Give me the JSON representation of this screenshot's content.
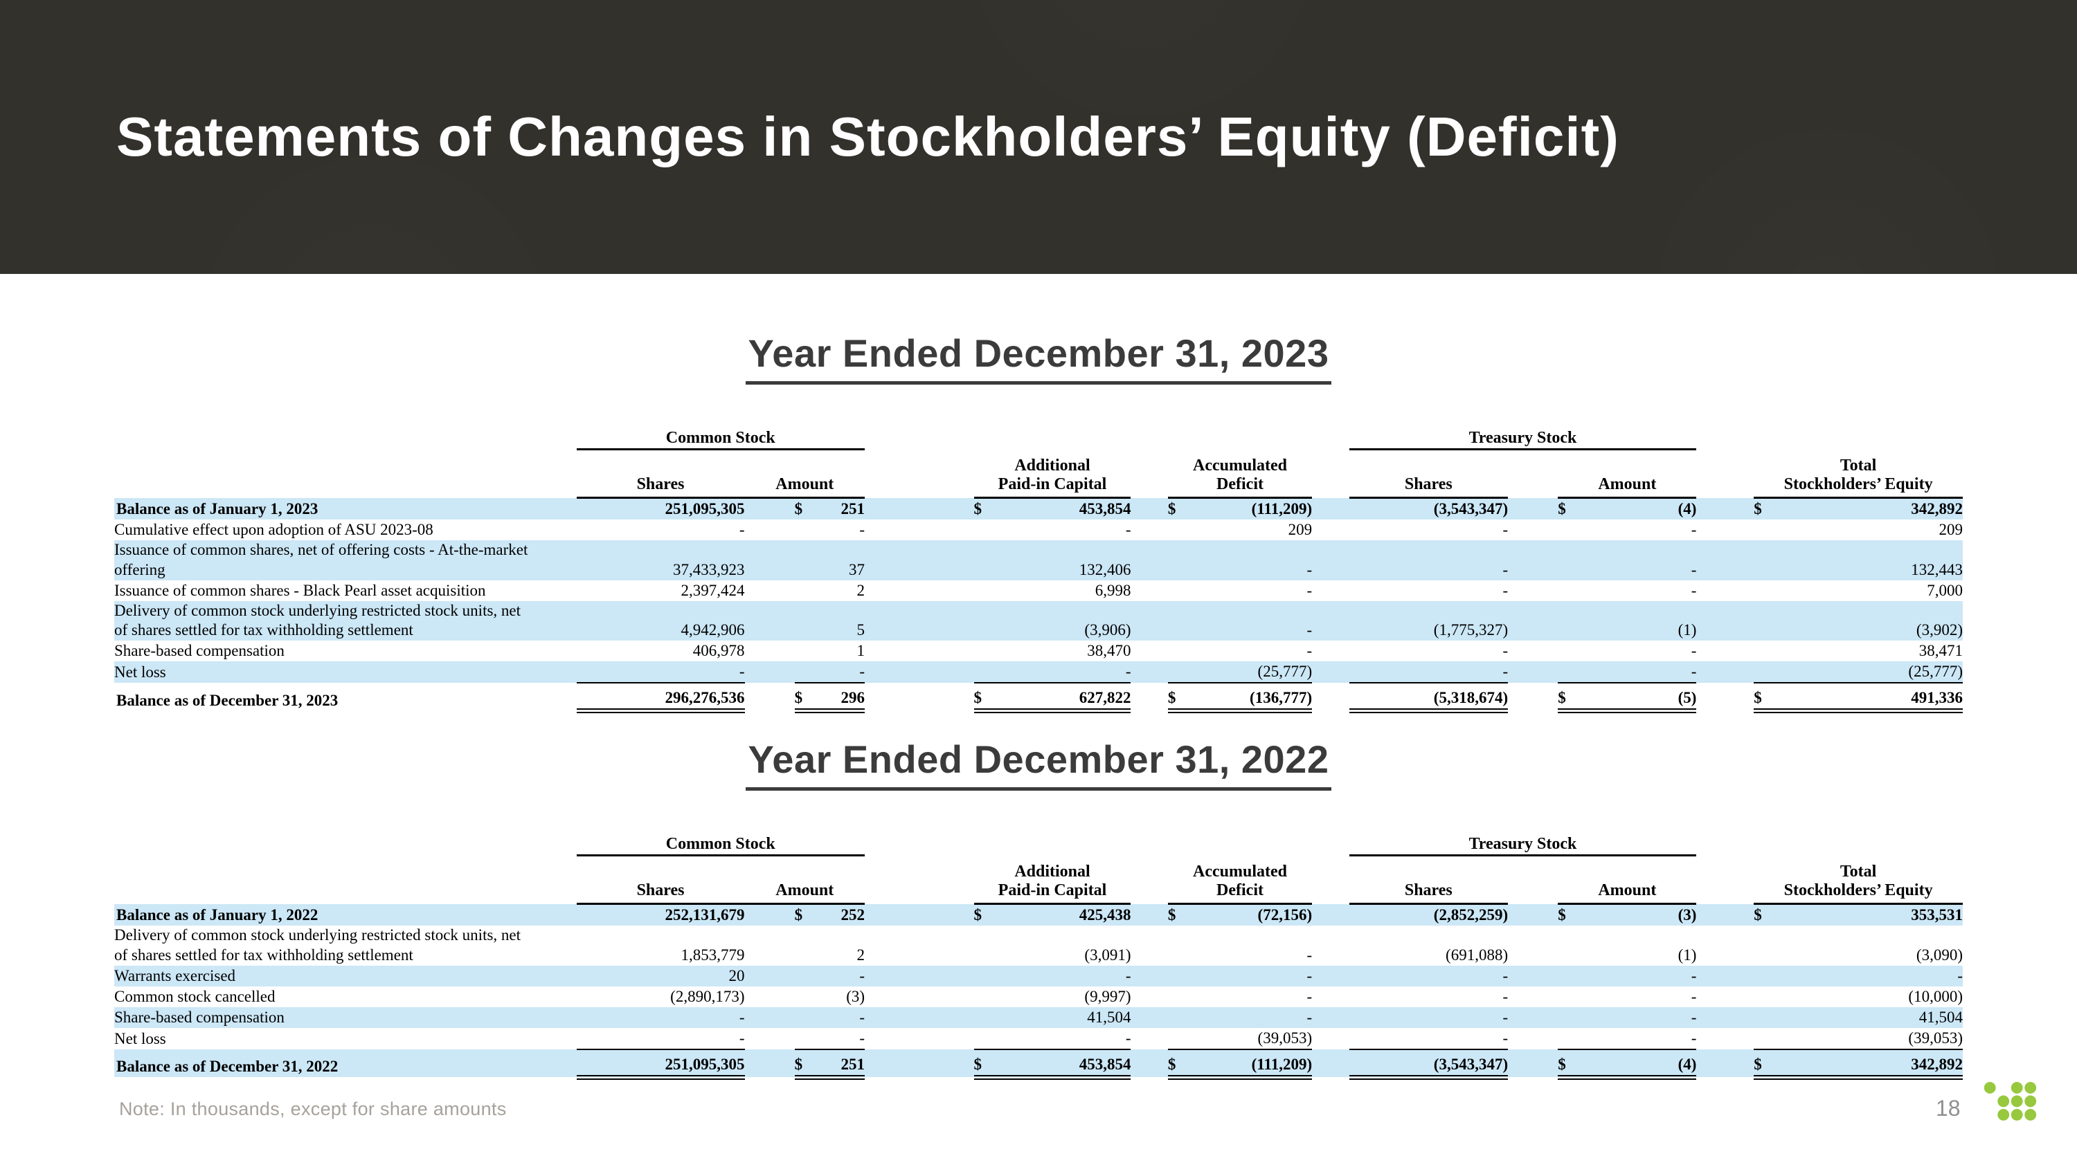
{
  "slide": {
    "title": "Statements of Changes in Stockholders’ Equity (Deficit)",
    "footer_note": "Note: In thousands, except for share amounts",
    "page_number": "18"
  },
  "colors": {
    "header_band_bg": "#33312b",
    "row_highlight_blue": "#cce7f6",
    "logo_green": "#97c83e",
    "heading_text": "#3b3b3b",
    "footnote_gray": "#a6a29b"
  },
  "logo": {
    "name": "nine-green-dots-logo",
    "dot_count": 9
  },
  "tables": [
    {
      "heading": "Year Ended December 31, 2023",
      "group_headers": {
        "common": "Common Stock",
        "treasury": "Treasury Stock"
      },
      "col_headers": {
        "shares": "Shares",
        "amount": "Amount",
        "apic": [
          "Additional",
          "Paid-in Capital"
        ],
        "deficit": [
          "Accumulated",
          "Deficit"
        ],
        "total": [
          "Total",
          "Stockholders’ Equity"
        ]
      },
      "rows": [
        {
          "label": [
            "Balance as of January 1, 2023"
          ],
          "bold": true,
          "blue": true,
          "dollar": true,
          "total": false,
          "values": [
            "251,095,305",
            "251",
            "453,854",
            "(111,209)",
            "(3,543,347)",
            "(4)",
            "342,892"
          ]
        },
        {
          "label": [
            "Cumulative effect upon adoption of ASU 2023-08"
          ],
          "bold": false,
          "blue": false,
          "dollar": false,
          "total": false,
          "values": [
            "-",
            "-",
            "-",
            "209",
            "-",
            "-",
            "209"
          ]
        },
        {
          "label": [
            "Issuance of common shares, net of offering costs - At-the-market",
            "offering"
          ],
          "bold": false,
          "blue": true,
          "dollar": false,
          "total": false,
          "values": [
            "37,433,923",
            "37",
            "132,406",
            "-",
            "-",
            "-",
            "132,443"
          ]
        },
        {
          "label": [
            "Issuance of common shares - Black Pearl asset acquisition"
          ],
          "bold": false,
          "blue": false,
          "dollar": false,
          "total": false,
          "values": [
            "2,397,424",
            "2",
            "6,998",
            "-",
            "-",
            "-",
            "7,000"
          ]
        },
        {
          "label": [
            "Delivery of common stock underlying restricted stock units, net",
            "of shares settled for tax withholding settlement"
          ],
          "bold": false,
          "blue": true,
          "dollar": false,
          "total": false,
          "values": [
            "4,942,906",
            "5",
            "(3,906)",
            "-",
            "(1,775,327)",
            "(1)",
            "(3,902)"
          ]
        },
        {
          "label": [
            "Share-based compensation"
          ],
          "bold": false,
          "blue": false,
          "dollar": false,
          "total": false,
          "values": [
            "406,978",
            "1",
            "38,470",
            "-",
            "-",
            "-",
            "38,471"
          ]
        },
        {
          "label": [
            "Net loss"
          ],
          "bold": false,
          "blue": true,
          "dollar": false,
          "total": false,
          "values": [
            "-",
            "-",
            "-",
            "(25,777)",
            "-",
            "-",
            "(25,777)"
          ]
        },
        {
          "label": [
            "Balance as of December 31, 2023"
          ],
          "bold": true,
          "blue": false,
          "dollar": true,
          "total": true,
          "values": [
            "296,276,536",
            "296",
            "627,822",
            "(136,777)",
            "(5,318,674)",
            "(5)",
            "491,336"
          ]
        }
      ]
    },
    {
      "heading": "Year Ended December 31, 2022",
      "group_headers": {
        "common": "Common Stock",
        "treasury": "Treasury Stock"
      },
      "col_headers": {
        "shares": "Shares",
        "amount": "Amount",
        "apic": [
          "Additional",
          "Paid-in Capital"
        ],
        "deficit": [
          "Accumulated",
          "Deficit"
        ],
        "total": [
          "Total",
          "Stockholders’ Equity"
        ]
      },
      "rows": [
        {
          "label": [
            "Balance as of January 1, 2022"
          ],
          "bold": true,
          "blue": true,
          "dollar": true,
          "total": false,
          "values": [
            "252,131,679",
            "252",
            "425,438",
            "(72,156)",
            "(2,852,259)",
            "(3)",
            "353,531"
          ]
        },
        {
          "label": [
            "Delivery of common stock underlying restricted stock units, net",
            "of shares settled for tax withholding settlement"
          ],
          "bold": false,
          "blue": false,
          "dollar": false,
          "total": false,
          "values": [
            "1,853,779",
            "2",
            "(3,091)",
            "-",
            "(691,088)",
            "(1)",
            "(3,090)"
          ]
        },
        {
          "label": [
            "Warrants exercised"
          ],
          "bold": false,
          "blue": true,
          "dollar": false,
          "total": false,
          "values": [
            "20",
            "-",
            "-",
            "-",
            "-",
            "-",
            "-"
          ]
        },
        {
          "label": [
            "Common stock cancelled"
          ],
          "bold": false,
          "blue": false,
          "dollar": false,
          "total": false,
          "values": [
            "(2,890,173)",
            "(3)",
            "(9,997)",
            "-",
            "-",
            "-",
            "(10,000)"
          ]
        },
        {
          "label": [
            "Share-based compensation"
          ],
          "bold": false,
          "blue": true,
          "dollar": false,
          "total": false,
          "values": [
            "-",
            "-",
            "41,504",
            "-",
            "-",
            "-",
            "41,504"
          ]
        },
        {
          "label": [
            "Net loss"
          ],
          "bold": false,
          "blue": false,
          "dollar": false,
          "total": false,
          "values": [
            "-",
            "-",
            "-",
            "(39,053)",
            "-",
            "-",
            "(39,053)"
          ]
        },
        {
          "label": [
            "Balance as of December 31, 2022"
          ],
          "bold": true,
          "blue": true,
          "dollar": true,
          "total": true,
          "values": [
            "251,095,305",
            "251",
            "453,854",
            "(111,209)",
            "(3,543,347)",
            "(4)",
            "342,892"
          ]
        }
      ]
    }
  ]
}
